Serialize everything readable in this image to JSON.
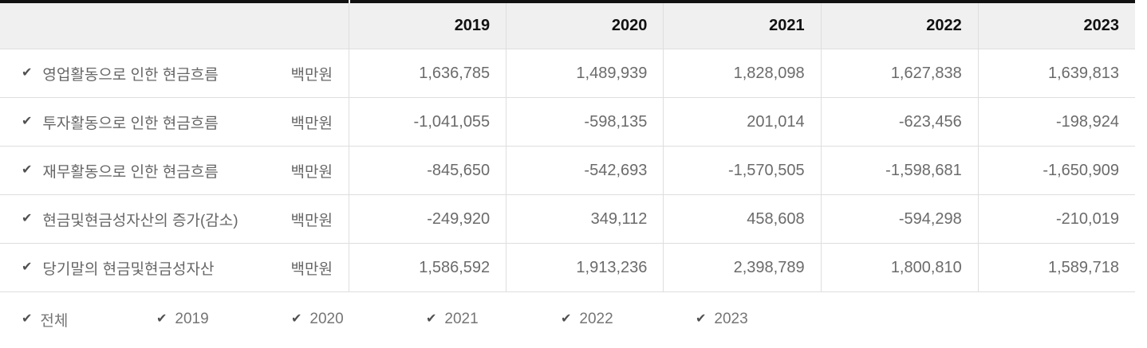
{
  "table": {
    "check_icon": "✔",
    "corner_label": "",
    "years": [
      "2019",
      "2020",
      "2021",
      "2022",
      "2023"
    ],
    "rows": [
      {
        "label": "영업활동으로 인한 현금흐름",
        "unit": "백만원",
        "values": [
          "1,636,785",
          "1,489,939",
          "1,828,098",
          "1,627,838",
          "1,639,813"
        ]
      },
      {
        "label": "투자활동으로 인한 현금흐름",
        "unit": "백만원",
        "values": [
          "-1,041,055",
          "-598,135",
          "201,014",
          "-623,456",
          "-198,924"
        ]
      },
      {
        "label": "재무활동으로 인한 현금흐름",
        "unit": "백만원",
        "values": [
          "-845,650",
          "-542,693",
          "-1,570,505",
          "-1,598,681",
          "-1,650,909"
        ]
      },
      {
        "label": "현금및현금성자산의 증가(감소)",
        "unit": "백만원",
        "values": [
          "-249,920",
          "349,112",
          "458,608",
          "-594,298",
          "-210,019"
        ]
      },
      {
        "label": "당기말의 현금및현금성자산",
        "unit": "백만원",
        "values": [
          "1,586,592",
          "1,913,236",
          "2,398,789",
          "1,800,810",
          "1,589,718"
        ]
      }
    ]
  },
  "filters": [
    {
      "key": "all",
      "label": "전체",
      "checked": true
    },
    {
      "key": "2019",
      "label": "2019",
      "checked": true
    },
    {
      "key": "2020",
      "label": "2020",
      "checked": true
    },
    {
      "key": "2021",
      "label": "2021",
      "checked": true
    },
    {
      "key": "2022",
      "label": "2022",
      "checked": true
    },
    {
      "key": "2023",
      "label": "2023",
      "checked": true
    }
  ],
  "colors": {
    "top_border": "#111111",
    "header_bg": "#f0f0f0",
    "divider": "#dedede",
    "header_text": "#111111",
    "value_text": "#6b6b6b",
    "label_text": "#666666",
    "check": "#505050",
    "filter_text": "#757575"
  }
}
